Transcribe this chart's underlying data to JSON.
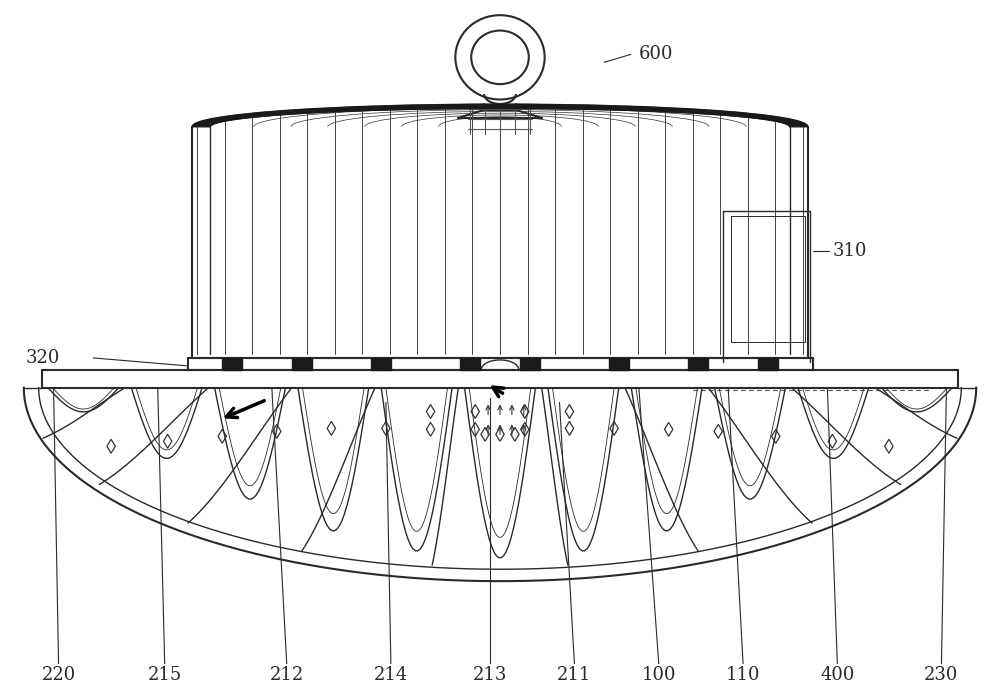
{
  "bg_color": "#ffffff",
  "lc": "#2a2a2a",
  "dark": "#111111",
  "gray": "#888888",
  "figsize": [
    10.0,
    7.0
  ],
  "dpi": 100,
  "font_size": 11,
  "label_font_size": 13
}
